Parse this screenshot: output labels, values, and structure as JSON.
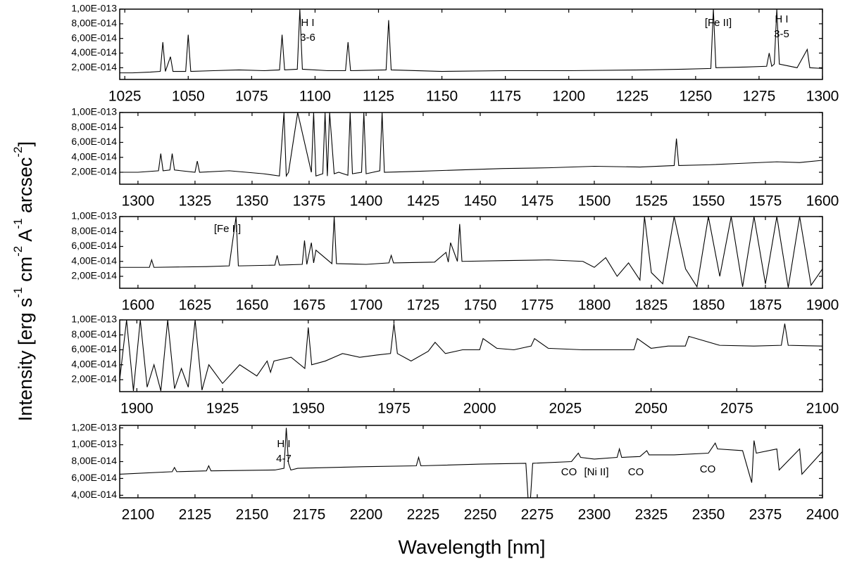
{
  "xlabel": "Wavelength [nm]",
  "ylabel": [
    "Intensity [erg s",
    "-1",
    " cm",
    "-2",
    " A",
    "-1",
    " arcsec",
    "-2",
    "]"
  ],
  "chart_data": [
    {
      "type": "line",
      "color": "#000000",
      "xlim": [
        1023,
        1300
      ],
      "ylim": [
        4e-15,
        1e-13
      ],
      "xticks": [
        1025,
        1050,
        1075,
        1100,
        1125,
        1150,
        1175,
        1200,
        1225,
        1250,
        1275,
        1300
      ],
      "yticks": [
        {
          "value": 2e-14,
          "label": "2,00E-014"
        },
        {
          "value": 4e-14,
          "label": "4,00E-014"
        },
        {
          "value": 6e-14,
          "label": "6,00E-014"
        },
        {
          "value": 8e-14,
          "label": "8,00E-014"
        },
        {
          "value": 1e-13,
          "label": "1,00E-013"
        }
      ],
      "x": [
        1023,
        1028,
        1035,
        1039,
        1040,
        1041,
        1043,
        1044,
        1049,
        1050,
        1051,
        1060,
        1070,
        1080,
        1086,
        1087,
        1088,
        1093,
        1094,
        1095,
        1105,
        1112,
        1113,
        1114,
        1128,
        1129,
        1130,
        1150,
        1175,
        1200,
        1230,
        1245,
        1256,
        1257,
        1258,
        1270,
        1278,
        1279,
        1280,
        1281,
        1282,
        1283,
        1290,
        1294,
        1295,
        1300
      ],
      "values": [
        1.3e-14,
        1.3e-14,
        1.4e-14,
        1.5e-14,
        5.5e-14,
        1.5e-14,
        3.5e-14,
        1.5e-14,
        1.5e-14,
        6.5e-14,
        1.5e-14,
        1.6e-14,
        1.7e-14,
        1.6e-14,
        1.7e-14,
        6.5e-14,
        1.7e-14,
        1.8e-14,
        1e-13,
        1.8e-14,
        1.6e-14,
        1.6e-14,
        5.5e-14,
        1.6e-14,
        1.7e-14,
        8.5e-14,
        1.7e-14,
        1.5e-14,
        1.6e-14,
        1.6e-14,
        1.7e-14,
        1.8e-14,
        1.9e-14,
        1e-13,
        2e-14,
        2.1e-14,
        2.2e-14,
        4e-14,
        2.2e-14,
        2.5e-14,
        1e-13,
        2.5e-14,
        2e-14,
        4.5e-14,
        2e-14,
        1.9e-14
      ],
      "annotations": [
        [
          "H I",
          "3-6"
        ],
        [
          "[Fe II]"
        ],
        [
          "H I",
          "3-5"
        ]
      ]
    },
    {
      "type": "line",
      "color": "#000000",
      "xlim": [
        1292,
        1600
      ],
      "ylim": [
        4e-15,
        1e-13
      ],
      "xticks": [
        1300,
        1325,
        1350,
        1375,
        1400,
        1425,
        1450,
        1475,
        1500,
        1525,
        1550,
        1575,
        1600
      ],
      "yticks": [
        {
          "value": 2e-14,
          "label": "2,00E-014"
        },
        {
          "value": 4e-14,
          "label": "4,00E-014"
        },
        {
          "value": 6e-14,
          "label": "6,00E-014"
        },
        {
          "value": 8e-14,
          "label": "8,00E-014"
        },
        {
          "value": 1e-13,
          "label": "1,00E-013"
        }
      ],
      "x": [
        1292,
        1300,
        1309,
        1310,
        1311,
        1314,
        1315,
        1316,
        1325,
        1326,
        1327,
        1340,
        1355,
        1362,
        1364,
        1365,
        1366,
        1370,
        1376,
        1377,
        1378,
        1381,
        1382,
        1383,
        1384,
        1386,
        1388,
        1392,
        1393,
        1394,
        1398,
        1399,
        1400,
        1406,
        1407,
        1408,
        1420,
        1440,
        1460,
        1480,
        1500,
        1520,
        1535,
        1536,
        1537,
        1550,
        1565,
        1580,
        1590,
        1600
      ],
      "values": [
        2e-14,
        2e-14,
        2.2e-14,
        4.5e-14,
        2.2e-14,
        2.3e-14,
        4.5e-14,
        2.3e-14,
        2e-14,
        3.5e-14,
        2e-14,
        2.2e-14,
        1.8e-14,
        1.5e-14,
        1e-13,
        1.5e-14,
        2e-14,
        1e-13,
        2e-14,
        1e-13,
        1.5e-14,
        1.8e-14,
        1e-13,
        1.5e-14,
        1e-13,
        1.8e-14,
        2e-14,
        1.6e-14,
        1e-13,
        1.8e-14,
        2e-14,
        1e-13,
        1.8e-14,
        2.2e-14,
        1e-13,
        2e-14,
        2.1e-14,
        2.3e-14,
        2.5e-14,
        2.6e-14,
        2.8e-14,
        2.7e-14,
        2.9e-14,
        6.5e-14,
        2.9e-14,
        3e-14,
        3.2e-14,
        3.4e-14,
        3.3e-14,
        3.6e-14
      ],
      "annotations": []
    },
    {
      "type": "line",
      "color": "#000000",
      "xlim": [
        1592,
        1900
      ],
      "ylim": [
        4e-15,
        1e-13
      ],
      "xticks": [
        1600,
        1625,
        1650,
        1675,
        1700,
        1725,
        1750,
        1775,
        1800,
        1825,
        1850,
        1875,
        1900
      ],
      "yticks": [
        {
          "value": 2e-14,
          "label": "2,00E-014"
        },
        {
          "value": 4e-14,
          "label": "4,00E-014"
        },
        {
          "value": 6e-14,
          "label": "6,00E-014"
        },
        {
          "value": 8e-14,
          "label": "8,00E-014"
        },
        {
          "value": 1e-13,
          "label": "1,00E-013"
        }
      ],
      "x": [
        1592,
        1605,
        1606,
        1607,
        1630,
        1640,
        1643,
        1644,
        1645,
        1660,
        1661,
        1662,
        1672,
        1673,
        1674,
        1676,
        1677,
        1678,
        1685,
        1686,
        1687,
        1700,
        1710,
        1711,
        1712,
        1730,
        1735,
        1736,
        1737,
        1740,
        1741,
        1742,
        1760,
        1780,
        1795,
        1800,
        1805,
        1810,
        1815,
        1820,
        1822,
        1825,
        1830,
        1835,
        1840,
        1845,
        1850,
        1855,
        1860,
        1865,
        1870,
        1875,
        1880,
        1885,
        1890,
        1895,
        1900
      ],
      "values": [
        3.2e-14,
        3.2e-14,
        4.2e-14,
        3.2e-14,
        3.3e-14,
        3.4e-14,
        1e-13,
        3.4e-14,
        3.4e-14,
        3.5e-14,
        4.8e-14,
        3.5e-14,
        3.6e-14,
        6.8e-14,
        3.6e-14,
        6.5e-14,
        3.8e-14,
        5.5e-14,
        3.7e-14,
        1e-13,
        3.7e-14,
        3.6e-14,
        3.8e-14,
        4.8e-14,
        3.8e-14,
        3.9e-14,
        5.2e-14,
        3.9e-14,
        6.5e-14,
        4e-14,
        9e-14,
        4e-14,
        4.1e-14,
        4.2e-14,
        4e-14,
        3.2e-14,
        4.5e-14,
        2e-14,
        3.8e-14,
        1.5e-14,
        1e-13,
        2.5e-14,
        1e-14,
        1e-13,
        3e-14,
        6e-15,
        1e-13,
        2e-14,
        1e-13,
        6e-15,
        1e-13,
        1e-14,
        1e-13,
        5e-15,
        1e-13,
        8e-15,
        3e-14
      ],
      "annotations": [
        [
          "[Fe II]"
        ]
      ]
    },
    {
      "type": "line",
      "color": "#000000",
      "xlim": [
        1895,
        2100
      ],
      "ylim": [
        4e-15,
        1e-13
      ],
      "xticks": [
        1900,
        1925,
        1950,
        1975,
        2000,
        2025,
        2050,
        2075,
        2100
      ],
      "yticks": [
        {
          "value": 2e-14,
          "label": "2,00E-014"
        },
        {
          "value": 4e-14,
          "label": "4,00E-014"
        },
        {
          "value": 6e-14,
          "label": "6,00E-014"
        },
        {
          "value": 8e-14,
          "label": "8,00E-014"
        },
        {
          "value": 1e-13,
          "label": "1,00E-013"
        }
      ],
      "x": [
        1895,
        1897,
        1899,
        1901,
        1903,
        1905,
        1907,
        1909,
        1911,
        1913,
        1915,
        1917,
        1919,
        1921,
        1925,
        1930,
        1935,
        1938,
        1939,
        1940,
        1945,
        1949,
        1950,
        1951,
        1955,
        1960,
        1965,
        1970,
        1974,
        1975,
        1976,
        1980,
        1985,
        1987,
        1990,
        1995,
        2000,
        2001,
        2005,
        2010,
        2015,
        2016,
        2020,
        2030,
        2040,
        2045,
        2046,
        2050,
        2055,
        2060,
        2061,
        2070,
        2080,
        2088,
        2089,
        2090,
        2100
      ],
      "values": [
        2e-14,
        1e-13,
        5e-15,
        1e-13,
        1e-14,
        4e-14,
        5e-15,
        1e-13,
        8e-15,
        3.5e-14,
        1e-14,
        1e-13,
        6e-15,
        4e-14,
        1.5e-14,
        4e-14,
        2.5e-14,
        4.5e-14,
        3e-14,
        4.5e-14,
        5e-14,
        3.5e-14,
        9e-14,
        4e-14,
        4.5e-14,
        5.5e-14,
        5e-14,
        5.3e-14,
        5.5e-14,
        9.5e-14,
        5.5e-14,
        4.5e-14,
        5.8e-14,
        7e-14,
        5.5e-14,
        6e-14,
        6e-14,
        7.5e-14,
        6.2e-14,
        6e-14,
        6.5e-14,
        7.5e-14,
        6.2e-14,
        6e-14,
        6e-14,
        6e-14,
        7.5e-14,
        6.2e-14,
        6.5e-14,
        6.5e-14,
        7.8e-14,
        6.6e-14,
        6.5e-14,
        6.6e-14,
        9.5e-14,
        6.6e-14,
        6.5e-14
      ],
      "annotations": []
    },
    {
      "type": "line",
      "color": "#000000",
      "xlim": [
        2092,
        2400
      ],
      "ylim": [
        3.7e-14,
        1.23e-13
      ],
      "xticks": [
        2100,
        2125,
        2150,
        2175,
        2200,
        2225,
        2250,
        2275,
        2300,
        2325,
        2350,
        2375,
        2400
      ],
      "yticks": [
        {
          "value": 4e-14,
          "label": "4,00E-014"
        },
        {
          "value": 6e-14,
          "label": "6,00E-014"
        },
        {
          "value": 8e-14,
          "label": "8,00E-014"
        },
        {
          "value": 1e-13,
          "label": "1,00E-013"
        },
        {
          "value": 1.2e-13,
          "label": "1,20E-013"
        }
      ],
      "x": [
        2092,
        2115,
        2116,
        2117,
        2130,
        2131,
        2132,
        2160,
        2164,
        2165,
        2166,
        2167,
        2170,
        2200,
        2222,
        2223,
        2224,
        2250,
        2270,
        2271,
        2272,
        2273,
        2290,
        2293,
        2294,
        2300,
        2310,
        2311,
        2312,
        2320,
        2323,
        2324,
        2335,
        2350,
        2353,
        2354,
        2365,
        2369,
        2370,
        2371,
        2380,
        2381,
        2390,
        2391,
        2400
      ],
      "values": [
        6.5e-14,
        6.8e-14,
        7.3e-14,
        6.8e-14,
        6.9e-14,
        7.5e-14,
        6.9e-14,
        7e-14,
        7.2e-14,
        1.2e-13,
        7.8e-14,
        7e-14,
        7.2e-14,
        7.4e-14,
        7.5e-14,
        8.5e-14,
        7.5e-14,
        7.7e-14,
        7.8e-14,
        3.5e-14,
        3.5e-14,
        7.8e-14,
        8e-14,
        9e-14,
        8.5e-14,
        8.3e-14,
        8.5e-14,
        9.5e-14,
        8.5e-14,
        8.6e-14,
        9.3e-14,
        8.8e-14,
        8.8e-14,
        9e-14,
        1.02e-13,
        9.5e-14,
        9.3e-14,
        5.5e-14,
        1.05e-13,
        9e-14,
        9.5e-14,
        7e-14,
        9.5e-14,
        6.5e-14,
        9.2e-14
      ],
      "annotations": [
        [
          "H I",
          "4-7"
        ],
        [
          "CO"
        ],
        [
          "[Ni II]"
        ],
        [
          "CO"
        ],
        [
          "CO"
        ]
      ]
    }
  ]
}
